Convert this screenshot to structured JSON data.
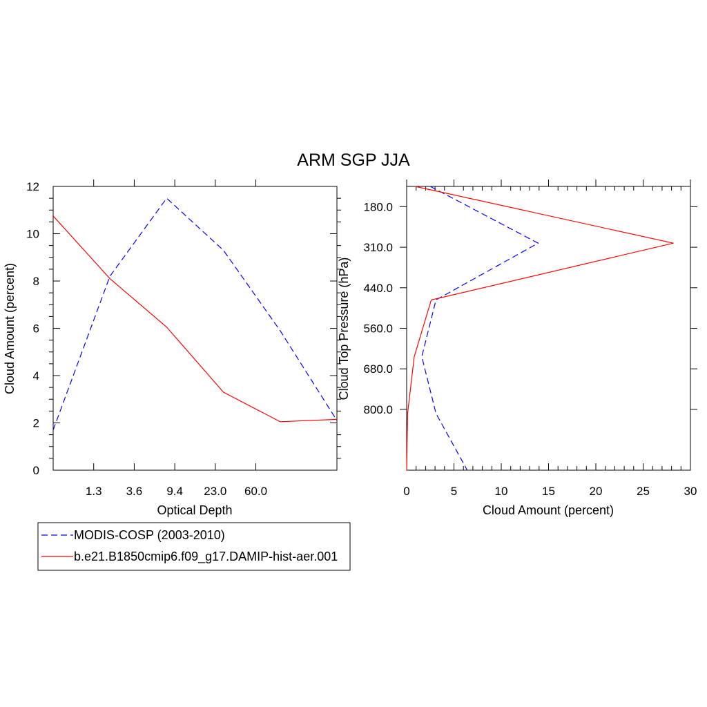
{
  "title": "ARM SGP JJA",
  "colors": {
    "obs": "#0000ff",
    "model": "#ff0000"
  },
  "legend": {
    "placement": "bottom-left",
    "entries": [
      {
        "label": "MODIS-COSP (2003-2010)",
        "color": "#0000ff",
        "style": "dashed"
      },
      {
        "label": "b.e21.B1850cmip6.f09_g17.DAMIP-hist-aer.001",
        "color": "#ff0000",
        "style": "solid"
      }
    ]
  },
  "chart_data": [
    {
      "type": "line",
      "xlabel": "Optical Depth",
      "ylabel": "Cloud Amount (percent)",
      "x_tick_labels": [
        "1.3",
        "3.6",
        "9.4",
        "23.0",
        "60.0"
      ],
      "x_bins": 7,
      "ylim": [
        0,
        12
      ],
      "y_ticks": [
        0,
        2,
        4,
        6,
        8,
        10,
        12
      ],
      "series": [
        {
          "name": "MODIS-COSP (2003-2010)",
          "style": "dashed",
          "color": "#0000ff",
          "values": [
            1.7,
            8.2,
            11.5,
            9.3,
            5.9,
            2.1
          ]
        },
        {
          "name": "b.e21.B1850cmip6.f09_g17.DAMIP-hist-aer.001",
          "style": "solid",
          "color": "#ff0000",
          "values": [
            10.75,
            8.1,
            6.05,
            3.3,
            2.05,
            2.15
          ]
        }
      ]
    },
    {
      "type": "line",
      "xlabel": "Cloud Amount (percent)",
      "ylabel": "Cloud Top Pressure (hPa)",
      "xlim": [
        0,
        30
      ],
      "x_ticks": [
        0,
        5,
        10,
        15,
        20,
        25,
        30
      ],
      "y_tick_labels": [
        "180.0",
        "310.0",
        "440.0",
        "560.0",
        "680.0",
        "800.0"
      ],
      "y_bins": 7,
      "series": [
        {
          "name": "MODIS-COSP (2003-2010)",
          "style": "dashed",
          "color": "#0000ff",
          "values": [
            2.5,
            13.9,
            3.1,
            1.6,
            3.1,
            6.4
          ]
        },
        {
          "name": "b.e21.B1850cmip6.f09_g17.DAMIP-hist-aer.001",
          "style": "solid",
          "color": "#ff0000",
          "values": [
            0.9,
            28.2,
            2.6,
            0.8,
            0.1,
            0.0
          ]
        }
      ]
    }
  ]
}
